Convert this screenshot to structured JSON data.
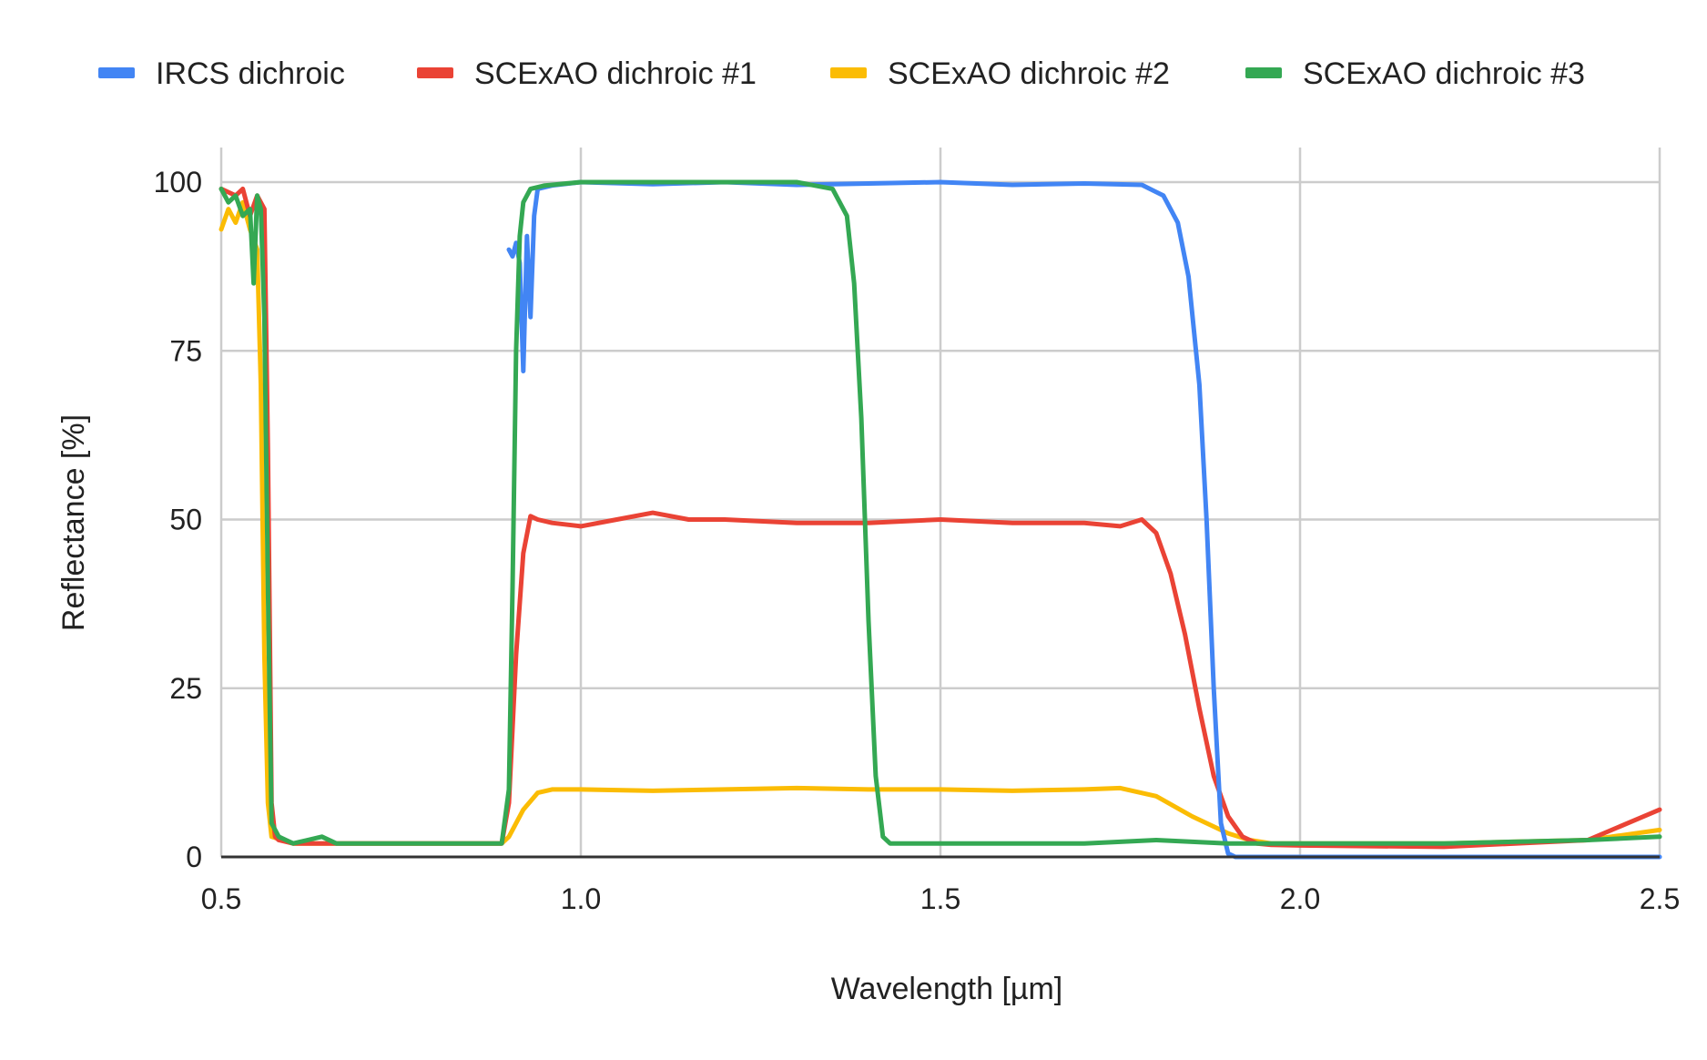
{
  "chart_data": {
    "type": "line",
    "title": "",
    "xlabel": "Wavelength [µm]",
    "ylabel": "Reflectance  [%]",
    "xlim": [
      0.5,
      2.5
    ],
    "ylim": [
      0,
      100
    ],
    "xticks": [
      0.5,
      1.0,
      1.5,
      2.0,
      2.5
    ],
    "xtick_labels": [
      "0.5",
      "1.0",
      "1.5",
      "2.0",
      "2.5"
    ],
    "yticks": [
      0,
      25,
      50,
      75,
      100
    ],
    "ytick_labels": [
      "0",
      "25",
      "50",
      "75",
      "100"
    ],
    "grid": true,
    "legend_position": "top",
    "series": [
      {
        "name": "IRCS dichroic",
        "color": "#4285F4",
        "x": [
          0.9,
          0.905,
          0.91,
          0.915,
          0.92,
          0.925,
          0.93,
          0.935,
          0.94,
          0.96,
          1.0,
          1.1,
          1.2,
          1.3,
          1.4,
          1.5,
          1.6,
          1.7,
          1.78,
          1.81,
          1.83,
          1.845,
          1.86,
          1.87,
          1.88,
          1.89,
          1.9,
          1.91,
          1.95,
          2.0,
          2.2,
          2.5
        ],
        "y": [
          90,
          89,
          91,
          88,
          72,
          92,
          80,
          95,
          99,
          99.5,
          100,
          99.7,
          100,
          99.6,
          99.8,
          100,
          99.6,
          99.8,
          99.6,
          98,
          94,
          86,
          70,
          50,
          25,
          5,
          0.5,
          0,
          0,
          0,
          0,
          0
        ]
      },
      {
        "name": "SCExAO dichroic #1",
        "color": "#EA4335",
        "x": [
          0.5,
          0.52,
          0.53,
          0.54,
          0.55,
          0.56,
          0.565,
          0.57,
          0.575,
          0.58,
          0.6,
          0.65,
          0.7,
          0.75,
          0.8,
          0.85,
          0.89,
          0.9,
          0.91,
          0.92,
          0.93,
          0.94,
          0.96,
          1.0,
          1.05,
          1.1,
          1.15,
          1.2,
          1.3,
          1.4,
          1.5,
          1.6,
          1.7,
          1.75,
          1.78,
          1.8,
          1.82,
          1.84,
          1.86,
          1.88,
          1.9,
          1.92,
          1.94,
          1.96,
          2.0,
          2.2,
          2.4,
          2.5
        ],
        "y": [
          99,
          98,
          99,
          95,
          98,
          96,
          60,
          8,
          3,
          2.5,
          2,
          2,
          2,
          2,
          2,
          2,
          2,
          8,
          30,
          45,
          50.5,
          50,
          49.5,
          49,
          50,
          51,
          50,
          50,
          49.5,
          49.5,
          50,
          49.5,
          49.5,
          49,
          50,
          48,
          42,
          33,
          22,
          12,
          6,
          3,
          2,
          1.8,
          1.7,
          1.5,
          2.5,
          7
        ]
      },
      {
        "name": "SCExAO dichroic #2",
        "color": "#FBBC04",
        "x": [
          0.5,
          0.51,
          0.52,
          0.53,
          0.54,
          0.55,
          0.555,
          0.56,
          0.565,
          0.57,
          0.6,
          0.65,
          0.7,
          0.75,
          0.8,
          0.85,
          0.89,
          0.9,
          0.92,
          0.94,
          0.96,
          1.0,
          1.1,
          1.2,
          1.3,
          1.4,
          1.5,
          1.6,
          1.7,
          1.75,
          1.8,
          1.85,
          1.9,
          1.93,
          1.96,
          2.0,
          2.2,
          2.4,
          2.5
        ],
        "y": [
          93,
          96,
          94,
          97,
          93,
          90,
          70,
          30,
          8,
          3,
          2,
          2,
          2,
          2,
          2,
          2,
          2,
          3,
          7,
          9.5,
          10,
          10,
          9.8,
          10,
          10.2,
          10,
          10,
          9.8,
          10,
          10.2,
          9,
          6,
          3.5,
          2.5,
          2,
          2,
          2,
          2.5,
          4
        ]
      },
      {
        "name": "SCExAO dichroic #3",
        "color": "#34A853",
        "x": [
          0.5,
          0.51,
          0.52,
          0.53,
          0.54,
          0.545,
          0.55,
          0.555,
          0.56,
          0.565,
          0.57,
          0.58,
          0.59,
          0.6,
          0.62,
          0.64,
          0.66,
          0.7,
          0.75,
          0.8,
          0.85,
          0.89,
          0.9,
          0.905,
          0.91,
          0.915,
          0.92,
          0.93,
          0.95,
          1.0,
          1.1,
          1.2,
          1.3,
          1.35,
          1.37,
          1.38,
          1.39,
          1.4,
          1.41,
          1.42,
          1.43,
          1.5,
          1.6,
          1.7,
          1.8,
          1.9,
          2.0,
          2.2,
          2.4,
          2.5
        ],
        "y": [
          99,
          97,
          98,
          95,
          96,
          85,
          98,
          96,
          80,
          40,
          5,
          3,
          2.5,
          2,
          2.5,
          3,
          2,
          2,
          2,
          2,
          2,
          2,
          10,
          40,
          75,
          92,
          97,
          99,
          99.5,
          100,
          100,
          100,
          100,
          99,
          95,
          85,
          65,
          35,
          12,
          3,
          2,
          2,
          2,
          2,
          2.5,
          2,
          2,
          2,
          2.5,
          3
        ]
      }
    ]
  }
}
